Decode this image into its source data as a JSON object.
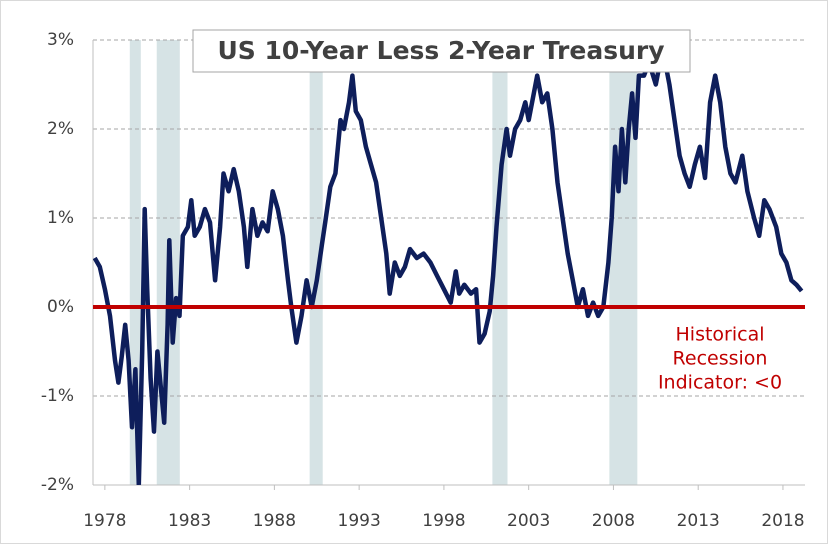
{
  "chart_data": {
    "type": "line",
    "title": "US 10-Year Less 2-Year Treasury",
    "annotation": [
      "Historical",
      "Recession",
      "Indicator:  <0"
    ],
    "annotation_color": "#c00000",
    "xlim": [
      1977.3,
      2019.3
    ],
    "xticks": [
      1978,
      1983,
      1988,
      1993,
      1998,
      2003,
      2008,
      2013,
      2018
    ],
    "ylim": [
      -2,
      3
    ],
    "yticks": [
      {
        "value": -2,
        "label": "-2%"
      },
      {
        "value": -1,
        "label": "-1%"
      },
      {
        "value": 0,
        "label": "0%"
      },
      {
        "value": 1,
        "label": "1%"
      },
      {
        "value": 2,
        "label": "2%"
      },
      {
        "value": 3,
        "label": "3%"
      }
    ],
    "grid": true,
    "reference_line": {
      "value": 0,
      "color": "#c00000"
    },
    "recessions": [
      [
        1979.47,
        1980.12
      ],
      [
        1981.06,
        1982.42
      ],
      [
        1990.08,
        1990.85
      ],
      [
        2000.86,
        2001.75
      ],
      [
        2007.76,
        2009.41
      ]
    ],
    "recession_color": "#d6e3e5",
    "x": [
      1977.4,
      1977.7,
      1978.0,
      1978.3,
      1978.6,
      1978.8,
      1979.0,
      1979.2,
      1979.4,
      1979.6,
      1979.8,
      1980.0,
      1980.2,
      1980.35,
      1980.5,
      1980.7,
      1980.9,
      1981.1,
      1981.3,
      1981.5,
      1981.7,
      1981.8,
      1982.0,
      1982.2,
      1982.4,
      1982.6,
      1982.9,
      1983.1,
      1983.3,
      1983.6,
      1983.9,
      1984.2,
      1984.5,
      1984.8,
      1985.0,
      1985.3,
      1985.6,
      1985.9,
      1986.2,
      1986.4,
      1986.7,
      1987.0,
      1987.3,
      1987.6,
      1987.9,
      1988.2,
      1988.5,
      1988.8,
      1989.0,
      1989.3,
      1989.6,
      1989.9,
      1990.2,
      1990.5,
      1990.8,
      1991.0,
      1991.3,
      1991.6,
      1991.9,
      1992.1,
      1992.4,
      1992.6,
      1992.8,
      1993.1,
      1993.4,
      1993.7,
      1994.0,
      1994.3,
      1994.6,
      1994.8,
      1995.1,
      1995.4,
      1995.7,
      1996.0,
      1996.4,
      1996.8,
      1997.2,
      1997.6,
      1998.0,
      1998.4,
      1998.7,
      1998.9,
      1999.2,
      1999.6,
      1999.9,
      2000.1,
      2000.4,
      2000.7,
      2000.9,
      2001.1,
      2001.4,
      2001.7,
      2001.9,
      2002.2,
      2002.5,
      2002.8,
      2003.0,
      2003.3,
      2003.5,
      2003.8,
      2004.1,
      2004.4,
      2004.7,
      2005.0,
      2005.3,
      2005.6,
      2005.9,
      2006.2,
      2006.5,
      2006.8,
      2007.1,
      2007.4,
      2007.7,
      2007.9,
      2008.1,
      2008.3,
      2008.5,
      2008.7,
      2008.9,
      2009.1,
      2009.3,
      2009.5,
      2009.8,
      2010.1,
      2010.5,
      2010.9,
      2011.3,
      2011.6,
      2011.9,
      2012.2,
      2012.5,
      2012.8,
      2013.1,
      2013.4,
      2013.7,
      2014.0,
      2014.3,
      2014.6,
      2014.9,
      2015.2,
      2015.6,
      2015.9,
      2016.3,
      2016.6,
      2016.9,
      2017.2,
      2017.6,
      2017.9,
      2018.2,
      2018.5,
      2018.8,
      2019.1
    ],
    "series": [
      {
        "color": "#0e1e5b",
        "values": [
          0.55,
          0.45,
          0.2,
          -0.1,
          -0.6,
          -0.85,
          -0.55,
          -0.2,
          -0.6,
          -1.35,
          -0.7,
          -2.0,
          -0.5,
          1.1,
          0.2,
          -0.8,
          -1.4,
          -0.5,
          -0.9,
          -1.3,
          -0.2,
          0.75,
          -0.4,
          0.1,
          -0.1,
          0.8,
          0.9,
          1.2,
          0.8,
          0.9,
          1.1,
          0.95,
          0.3,
          0.9,
          1.5,
          1.3,
          1.55,
          1.3,
          0.9,
          0.45,
          1.1,
          0.8,
          0.95,
          0.85,
          1.3,
          1.1,
          0.8,
          0.3,
          0.0,
          -0.4,
          -0.1,
          0.3,
          0.0,
          0.3,
          0.7,
          0.95,
          1.35,
          1.5,
          2.1,
          2.0,
          2.3,
          2.6,
          2.2,
          2.1,
          1.8,
          1.6,
          1.4,
          1.0,
          0.6,
          0.15,
          0.5,
          0.35,
          0.45,
          0.65,
          0.55,
          0.6,
          0.5,
          0.35,
          0.2,
          0.05,
          0.4,
          0.15,
          0.25,
          0.15,
          0.2,
          -0.4,
          -0.3,
          -0.05,
          0.35,
          0.9,
          1.6,
          2.0,
          1.7,
          2.0,
          2.1,
          2.3,
          2.1,
          2.4,
          2.6,
          2.3,
          2.4,
          2.0,
          1.4,
          1.0,
          0.6,
          0.3,
          0.0,
          0.2,
          -0.1,
          0.05,
          -0.1,
          0.0,
          0.5,
          1.0,
          1.8,
          1.3,
          2.0,
          1.4,
          2.0,
          2.4,
          1.9,
          2.6,
          2.6,
          2.75,
          2.5,
          2.9,
          2.5,
          2.1,
          1.7,
          1.5,
          1.35,
          1.6,
          1.8,
          1.45,
          2.3,
          2.6,
          2.3,
          1.8,
          1.5,
          1.4,
          1.7,
          1.3,
          1.0,
          0.8,
          1.2,
          1.1,
          0.9,
          0.6,
          0.5,
          0.3,
          0.25,
          0.18
        ]
      }
    ]
  }
}
